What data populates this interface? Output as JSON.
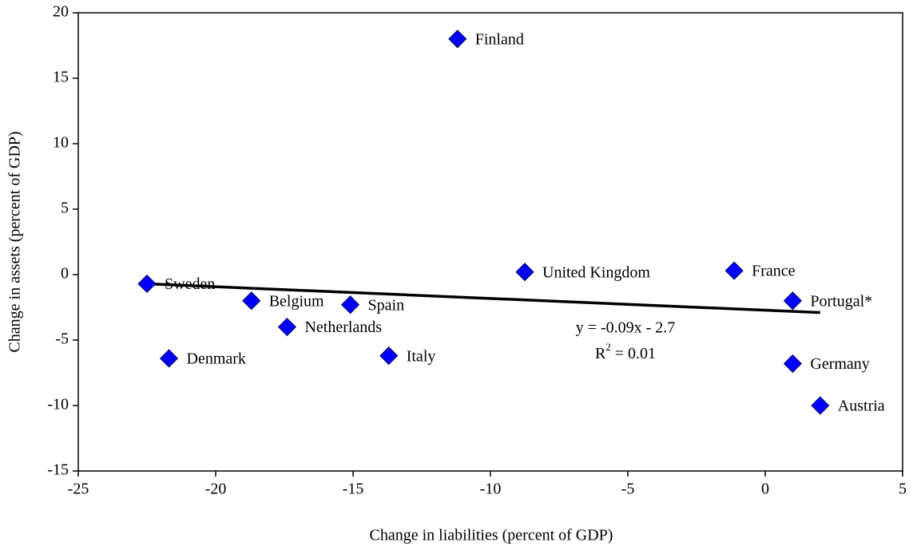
{
  "chart_data": {
    "type": "scatter",
    "xlabel": "Change in liabilities (percent of GDP)",
    "ylabel": "Change in assets (percent of GDP)",
    "xlim": [
      -25,
      5
    ],
    "xticks": [
      -25,
      -20,
      -15,
      -10,
      -5,
      0,
      5
    ],
    "ylim": [
      -15,
      20
    ],
    "yticks": [
      -15,
      -10,
      -5,
      0,
      5,
      10,
      15,
      20
    ],
    "grid": false,
    "series": [
      {
        "color": "#0000ff",
        "labels": [
          "Finland",
          "Sweden",
          "Belgium",
          "Spain",
          "Netherlands",
          "Denmark",
          "Italy",
          "United Kingdom",
          "France",
          "Portugal*",
          "Germany",
          "Austria"
        ],
        "x": [
          -11.2,
          -22.5,
          -18.7,
          -15.1,
          -17.4,
          -21.7,
          -13.7,
          -8.75,
          -1.13,
          1.0,
          1.0,
          2.0
        ],
        "values": [
          18.0,
          -0.7,
          -2.0,
          -2.3,
          -4.0,
          -6.4,
          -6.2,
          0.2,
          0.3,
          -2.0,
          -6.8,
          -10.0
        ]
      }
    ],
    "trendline": {
      "color": "#000000",
      "x": [
        -22.5,
        2.0
      ],
      "values": [
        -0.7,
        -2.9
      ]
    },
    "equation": "y = -0.09x - 2.7",
    "r_squared": {
      "base": "R",
      "sup": "2",
      "rest": "= 0.01"
    }
  }
}
